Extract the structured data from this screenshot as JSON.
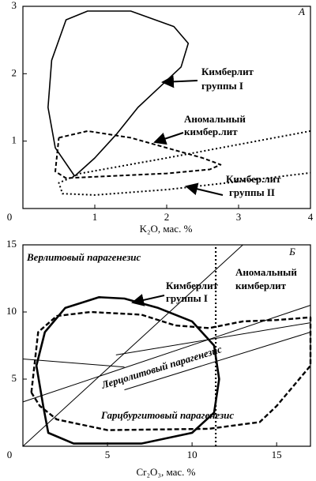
{
  "chart_data": [
    {
      "type": "line",
      "panel": "А",
      "xlabel": "K₂O, мас. %",
      "xlim": [
        0,
        4
      ],
      "ylim": [
        0,
        3
      ],
      "xticks": [
        0,
        1,
        2,
        3,
        4
      ],
      "yticks": [
        1,
        2,
        3
      ],
      "annotations": [
        "Кимберлит",
        "группы I",
        "Аномальный",
        "кимбер.лит",
        "Кимбер.лит",
        "группы II"
      ],
      "series": [
        {
          "style": "solid",
          "x": [
            0.72,
            0.45,
            0.35,
            0.4,
            0.6,
            0.9,
            1.5,
            2.1,
            2.3,
            2.2,
            1.9,
            1.6,
            1.3,
            1.0,
            0.72
          ],
          "values": [
            0.48,
            0.9,
            1.5,
            2.2,
            2.8,
            2.93,
            2.93,
            2.7,
            2.45,
            2.1,
            1.8,
            1.5,
            1.1,
            0.75,
            0.48
          ]
        },
        {
          "style": "dashed",
          "x": [
            0.5,
            0.9,
            1.5,
            2.0,
            2.5,
            2.75,
            2.6,
            2.0,
            1.2,
            0.6,
            0.45,
            0.5
          ],
          "values": [
            1.05,
            1.15,
            1.05,
            0.9,
            0.75,
            0.65,
            0.58,
            0.52,
            0.48,
            0.45,
            0.55,
            1.05
          ]
        },
        {
          "style": "dotted",
          "x": [
            4,
            2,
            0.8,
            0.5,
            0.55,
            1,
            2,
            3,
            4
          ],
          "values": [
            1.15,
            0.75,
            0.52,
            0.38,
            0.22,
            0.2,
            0.28,
            0.4,
            0.53
          ]
        }
      ]
    },
    {
      "type": "line",
      "panel": "Б",
      "xlabel": "Cr₂O₃, мас. %",
      "xlim": [
        0,
        17
      ],
      "ylim": [
        0,
        15
      ],
      "xticks": [
        0,
        5,
        10,
        15
      ],
      "yticks": [
        5,
        10,
        15
      ],
      "annotations": [
        "Верлитовый парагенезис",
        "Кимберлит",
        "группы I",
        "Аномальный",
        "кимберлит",
        "Лерцолитовый парагенезис",
        "Гарцбургитовый парагенезис"
      ],
      "series": [
        {
          "style": "bold",
          "x": [
            1.2,
            0.8,
            1.3,
            2.5,
            4.5,
            6,
            8,
            10,
            11.3,
            11.6,
            11.3,
            10,
            7,
            3,
            1.5,
            1.2
          ],
          "values": [
            3,
            6,
            8.5,
            10.3,
            11.1,
            11,
            10.3,
            9.3,
            7.5,
            5,
            2.5,
            1,
            0.2,
            0.2,
            1,
            3
          ]
        },
        {
          "style": "dashed-bold",
          "x": [
            0.5,
            0.9,
            2,
            4,
            7,
            9,
            11,
            13,
            15,
            17,
            17,
            15,
            14,
            11,
            5,
            2,
            1,
            0.5
          ],
          "values": [
            4,
            8.5,
            9.7,
            10,
            9.8,
            9,
            8.8,
            9.3,
            9.4,
            9.6,
            6,
            3,
            1.8,
            1.3,
            1.2,
            2,
            3,
            4
          ]
        },
        {
          "style": "thin",
          "x": [
            0,
            13
          ],
          "values": [
            0,
            15
          ]
        },
        {
          "style": "thin",
          "x": [
            0,
            6
          ],
          "values": [
            6.5,
            5.9
          ]
        },
        {
          "style": "thin",
          "x": [
            0,
            17
          ],
          "values": [
            3.3,
            10.5
          ]
        },
        {
          "style": "thin",
          "x": [
            5.5,
            17
          ],
          "values": [
            6.8,
            9.2
          ]
        },
        {
          "style": "thin",
          "x": [
            6,
            17
          ],
          "values": [
            4.2,
            8.5
          ]
        },
        {
          "style": "dotted-bold",
          "x": [
            11.4,
            11.4
          ],
          "values": [
            0,
            15
          ]
        }
      ]
    }
  ]
}
